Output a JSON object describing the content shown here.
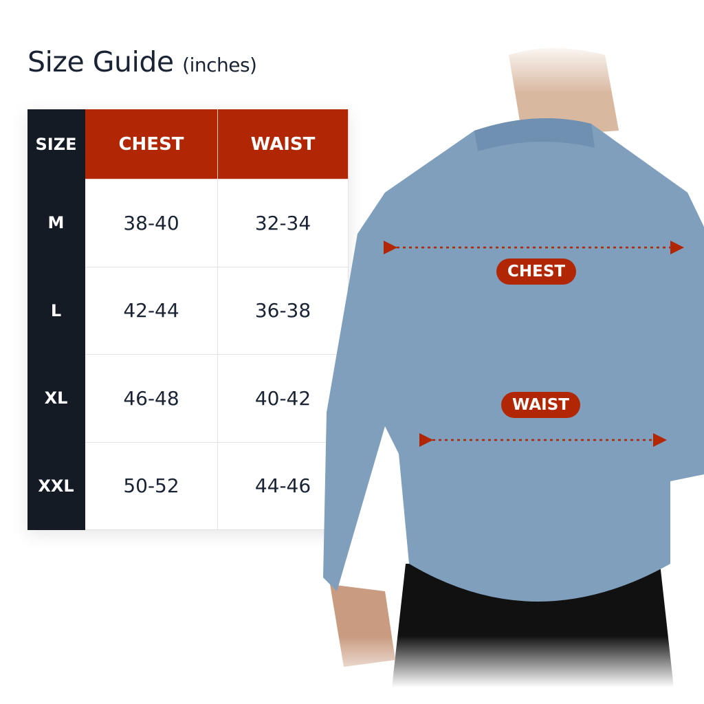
{
  "title": {
    "main": "Size Guide",
    "unit": "(inches)"
  },
  "table": {
    "headers": [
      "SIZE",
      "CHEST",
      "WAIST"
    ],
    "rows": [
      {
        "size": "M",
        "chest": "38-40",
        "waist": "32-34"
      },
      {
        "size": "L",
        "chest": "42-44",
        "waist": "36-38"
      },
      {
        "size": "XL",
        "chest": "46-48",
        "waist": "40-42"
      },
      {
        "size": "XXL",
        "chest": "50-52",
        "waist": "44-46"
      }
    ]
  },
  "diagram": {
    "chest_label": "CHEST",
    "waist_label": "WAIST"
  },
  "colors": {
    "accent": "#b12704",
    "dark": "#141b25",
    "denim": "#7f9fbd"
  }
}
